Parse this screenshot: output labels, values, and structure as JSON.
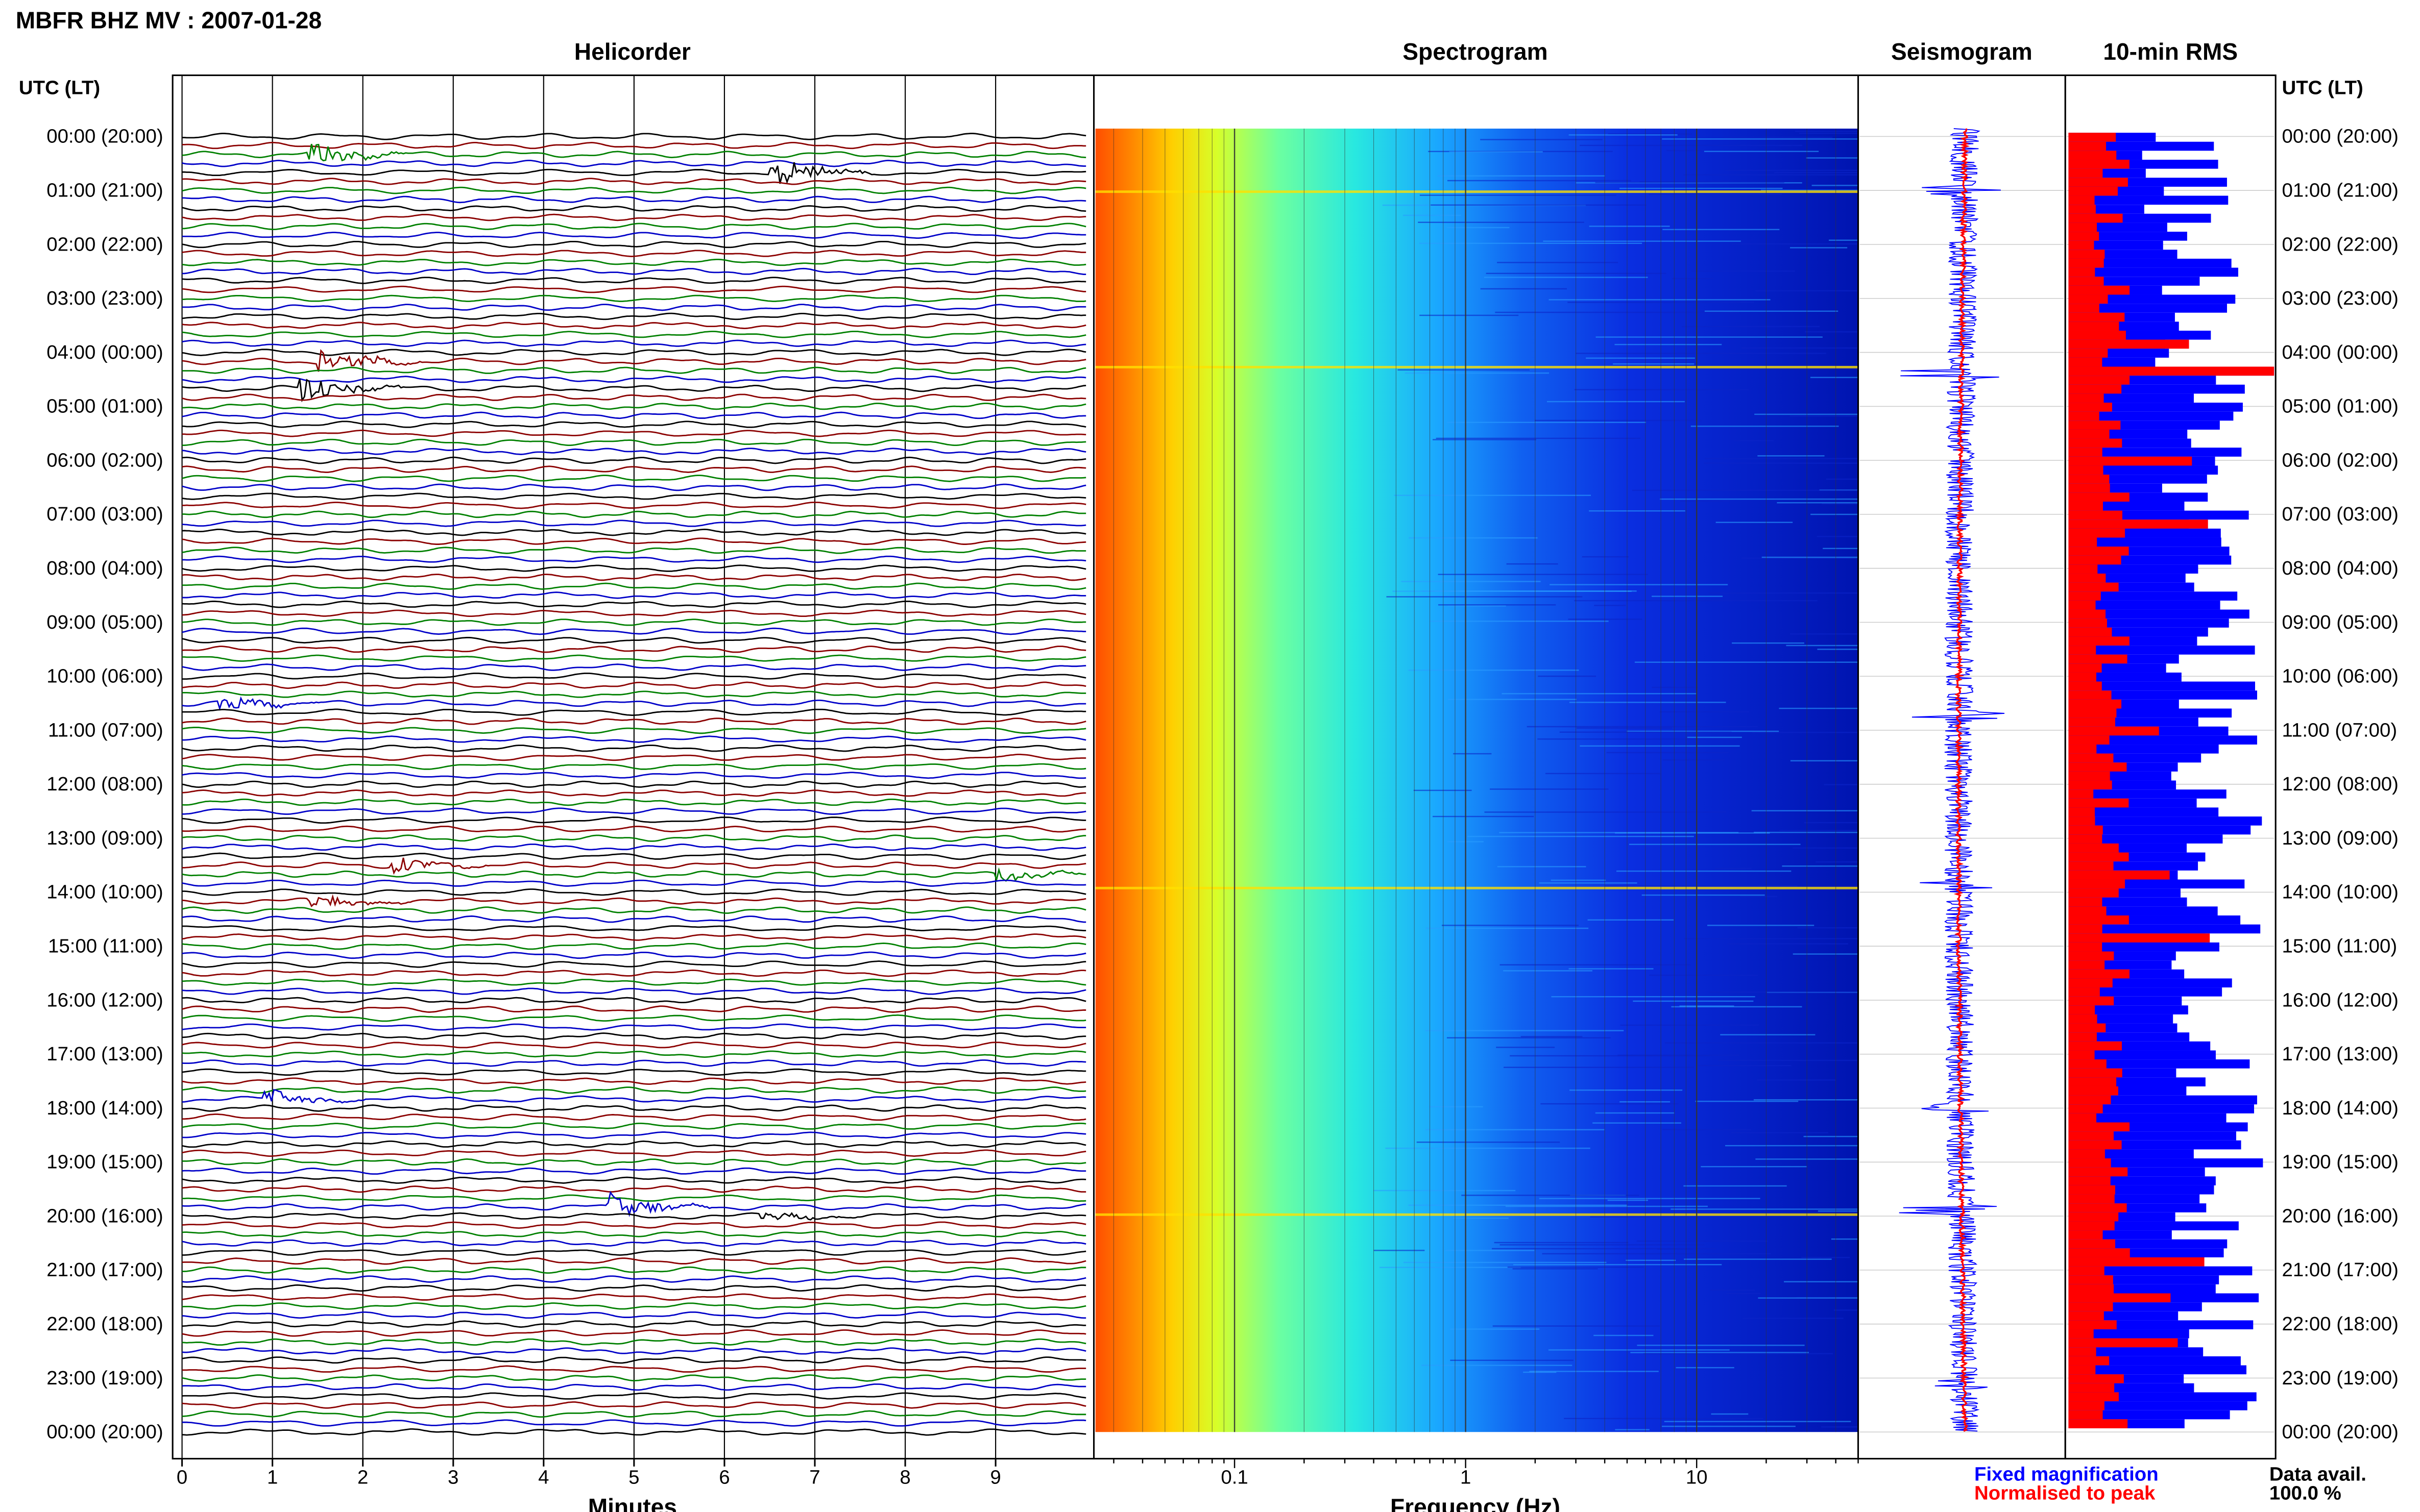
{
  "title": "MBFR BHZ MV : 2007-01-28",
  "panels": {
    "helicorder": "Helicorder",
    "spectrogram": "Spectrogram",
    "seismogram": "Seismogram",
    "rms": "10-min RMS"
  },
  "time_axis_header": "UTC (LT)",
  "time_labels": [
    "00:00 (20:00)",
    "01:00 (21:00)",
    "02:00 (22:00)",
    "03:00 (23:00)",
    "04:00 (00:00)",
    "05:00 (01:00)",
    "06:00 (02:00)",
    "07:00 (03:00)",
    "08:00 (04:00)",
    "09:00 (05:00)",
    "10:00 (06:00)",
    "11:00 (07:00)",
    "12:00 (08:00)",
    "13:00 (09:00)",
    "14:00 (10:00)",
    "15:00 (11:00)",
    "16:00 (12:00)",
    "17:00 (13:00)",
    "18:00 (14:00)",
    "19:00 (15:00)",
    "20:00 (16:00)",
    "21:00 (17:00)",
    "22:00 (18:00)",
    "23:00 (19:00)",
    "00:00 (20:00)"
  ],
  "legend": {
    "fixed": "Fixed magnification",
    "normalised": "Normalised to peak",
    "fixed_color": "#0000ff",
    "normalised_color": "#ff0000"
  },
  "data_avail": {
    "label": "Data avail.",
    "value": "100.0 %"
  },
  "chart_data": [
    {
      "type": "line",
      "name": "helicorder",
      "title": "Helicorder",
      "xlabel": "Minutes",
      "x_ticks": [
        0,
        1,
        2,
        3,
        4,
        5,
        6,
        7,
        8,
        9
      ],
      "xlim": [
        0,
        10
      ],
      "rows": 144,
      "trace_colors": [
        "#000000",
        "#8b0000",
        "#008000",
        "#0000c8"
      ],
      "events": [
        {
          "start": "00:20",
          "x_min": 1.5,
          "amp": 8
        },
        {
          "start": "00:40",
          "x_min": 6.6,
          "amp": 10
        },
        {
          "start": "04:10",
          "x_min": 1.6,
          "amp": 9
        },
        {
          "start": "04:40",
          "x_min": 1.4,
          "amp": 10
        },
        {
          "start": "10:30",
          "x_min": 0.5,
          "amp": 5
        },
        {
          "start": "13:30",
          "x_min": 2.4,
          "amp": 5
        },
        {
          "start": "13:40",
          "x_min": 9.1,
          "amp": 4
        },
        {
          "start": "14:10",
          "x_min": 1.5,
          "amp": 5
        },
        {
          "start": "17:50",
          "x_min": 1.0,
          "amp": 5
        },
        {
          "start": "19:50",
          "x_min": 4.8,
          "amp": 9
        },
        {
          "start": "20:00",
          "x_min": 6.5,
          "amp": 3
        }
      ]
    },
    {
      "type": "heatmap",
      "name": "spectrogram",
      "title": "Spectrogram",
      "xlabel": "Frequency (Hz)",
      "x_ticks": [
        "0.1",
        "1",
        "10"
      ],
      "x_scale": "log",
      "xlim": [
        0.025,
        50
      ],
      "colormap": "jet"
    },
    {
      "type": "line",
      "name": "seismogram",
      "title": "Seismogram",
      "series": [
        {
          "name": "Fixed magnification",
          "color": "#0000ff"
        },
        {
          "name": "Normalised to peak",
          "color": "#ff0000"
        }
      ]
    },
    {
      "type": "bar",
      "name": "rms",
      "title": "10-min RMS",
      "orientation": "horizontal",
      "bins": 144,
      "series": [
        {
          "name": "Fixed magnification",
          "color": "#0000ff"
        },
        {
          "name": "Normalised to peak",
          "color": "#ff0000"
        }
      ]
    }
  ]
}
